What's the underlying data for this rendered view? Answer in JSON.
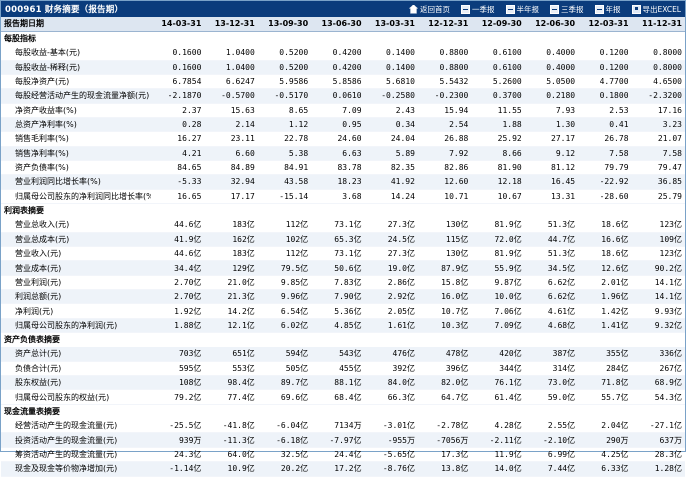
{
  "title": "000961 财务摘要（报告期）",
  "links": [
    {
      "label": "返回首页",
      "icon": "home-icon"
    },
    {
      "label": "一季报",
      "icon": "report-icon"
    },
    {
      "label": "半年报",
      "icon": "report-icon"
    },
    {
      "label": "三季报",
      "icon": "report-icon"
    },
    {
      "label": "年报",
      "icon": "report-icon"
    },
    {
      "label": "导出EXCEL",
      "icon": "export-icon"
    }
  ],
  "header": {
    "label": "报告期日期",
    "periods": [
      "14-03-31",
      "13-12-31",
      "13-09-30",
      "13-06-30",
      "13-03-31",
      "12-12-31",
      "12-09-30",
      "12-06-30",
      "12-03-31",
      "11-12-31"
    ]
  },
  "sections": [
    {
      "title": "每股指标",
      "rows": [
        {
          "label": "每股收益-基本(元)",
          "values": [
            "0.1600",
            "1.0400",
            "0.5200",
            "0.4200",
            "0.1400",
            "0.8800",
            "0.6100",
            "0.4000",
            "0.1200",
            "0.8000"
          ]
        },
        {
          "label": "每股收益-稀释(元)",
          "values": [
            "0.1600",
            "1.0400",
            "0.5200",
            "0.4200",
            "0.1400",
            "0.8800",
            "0.6100",
            "0.4000",
            "0.1200",
            "0.8000"
          ]
        },
        {
          "label": "每股净资产(元)",
          "values": [
            "6.7854",
            "6.6247",
            "5.9586",
            "5.8586",
            "5.6810",
            "5.5432",
            "5.2600",
            "5.0500",
            "4.7700",
            "4.6500"
          ]
        },
        {
          "label": "每股经营活动产生的现金流量净额(元)",
          "values": [
            "-2.1870",
            "-0.5700",
            "-0.5170",
            "0.0610",
            "-0.2580",
            "-0.2300",
            "0.3700",
            "0.2180",
            "0.1800",
            "-2.3200"
          ]
        },
        {
          "label": "净资产收益率(%)",
          "values": [
            "2.37",
            "15.63",
            "8.65",
            "7.09",
            "2.43",
            "15.94",
            "11.55",
            "7.93",
            "2.53",
            "17.16"
          ]
        },
        {
          "label": "总资产净利率(%)",
          "values": [
            "0.28",
            "2.14",
            "1.12",
            "0.95",
            "0.34",
            "2.54",
            "1.88",
            "1.30",
            "0.41",
            "3.23"
          ]
        },
        {
          "label": "销售毛利率(%)",
          "values": [
            "16.27",
            "23.11",
            "22.78",
            "24.60",
            "24.04",
            "26.88",
            "25.92",
            "27.17",
            "26.78",
            "21.07"
          ]
        },
        {
          "label": "销售净利率(%)",
          "values": [
            "4.21",
            "6.60",
            "5.38",
            "6.63",
            "5.89",
            "7.92",
            "8.66",
            "9.12",
            "7.58",
            "7.58"
          ]
        },
        {
          "label": "资产负债率(%)",
          "values": [
            "84.65",
            "84.89",
            "84.91",
            "83.78",
            "82.35",
            "82.86",
            "81.90",
            "81.12",
            "79.79",
            "79.47"
          ]
        },
        {
          "label": "营业利润同比增长率(%)",
          "values": [
            "-5.33",
            "32.94",
            "43.58",
            "18.23",
            "41.92",
            "12.60",
            "12.18",
            "16.45",
            "-22.92",
            "36.85"
          ]
        },
        {
          "label": "归属母公司股东的净利润同比增长率(%)",
          "values": [
            "16.65",
            "17.17",
            "-15.14",
            "3.68",
            "14.24",
            "10.71",
            "10.67",
            "13.31",
            "-28.60",
            "25.79"
          ]
        }
      ]
    },
    {
      "title": "利润表摘要",
      "rows": [
        {
          "label": "营业总收入(元)",
          "values": [
            "44.6亿",
            "183亿",
            "112亿",
            "73.1亿",
            "27.3亿",
            "130亿",
            "81.9亿",
            "51.3亿",
            "18.6亿",
            "123亿"
          ]
        },
        {
          "label": "营业总成本(元)",
          "values": [
            "41.9亿",
            "162亿",
            "102亿",
            "65.3亿",
            "24.5亿",
            "115亿",
            "72.0亿",
            "44.7亿",
            "16.6亿",
            "109亿"
          ]
        },
        {
          "label": "营业收入(元)",
          "values": [
            "44.6亿",
            "183亿",
            "112亿",
            "73.1亿",
            "27.3亿",
            "130亿",
            "81.9亿",
            "51.3亿",
            "18.6亿",
            "123亿"
          ]
        },
        {
          "label": "营业成本(元)",
          "values": [
            "34.4亿",
            "129亿",
            "79.5亿",
            "50.6亿",
            "19.0亿",
            "87.9亿",
            "55.9亿",
            "34.5亿",
            "12.6亿",
            "90.2亿"
          ]
        },
        {
          "label": "营业利润(元)",
          "values": [
            "2.70亿",
            "21.0亿",
            "9.85亿",
            "7.83亿",
            "2.86亿",
            "15.8亿",
            "9.87亿",
            "6.62亿",
            "2.01亿",
            "14.1亿"
          ]
        },
        {
          "label": "利润总额(元)",
          "values": [
            "2.70亿",
            "21.3亿",
            "9.96亿",
            "7.90亿",
            "2.92亿",
            "16.0亿",
            "10.0亿",
            "6.62亿",
            "1.96亿",
            "14.1亿"
          ]
        },
        {
          "label": "净利润(元)",
          "values": [
            "1.92亿",
            "14.2亿",
            "6.54亿",
            "5.36亿",
            "2.05亿",
            "10.7亿",
            "7.06亿",
            "4.61亿",
            "1.42亿",
            "9.93亿"
          ]
        },
        {
          "label": "归属母公司股东的净利润(元)",
          "values": [
            "1.88亿",
            "12.1亿",
            "6.02亿",
            "4.85亿",
            "1.61亿",
            "10.3亿",
            "7.09亿",
            "4.68亿",
            "1.41亿",
            "9.32亿"
          ]
        }
      ]
    },
    {
      "title": "资产负债表摘要",
      "rows": [
        {
          "label": "资产总计(元)",
          "values": [
            "703亿",
            "651亿",
            "594亿",
            "543亿",
            "476亿",
            "478亿",
            "420亿",
            "387亿",
            "355亿",
            "336亿"
          ]
        },
        {
          "label": "负债合计(元)",
          "values": [
            "595亿",
            "553亿",
            "505亿",
            "455亿",
            "392亿",
            "396亿",
            "344亿",
            "314亿",
            "284亿",
            "267亿"
          ]
        },
        {
          "label": "股东权益(元)",
          "values": [
            "108亿",
            "98.4亿",
            "89.7亿",
            "88.1亿",
            "84.0亿",
            "82.0亿",
            "76.1亿",
            "73.0亿",
            "71.8亿",
            "68.9亿"
          ]
        },
        {
          "label": "归属母公司股东的权益(元)",
          "values": [
            "79.2亿",
            "77.4亿",
            "69.6亿",
            "68.4亿",
            "66.3亿",
            "64.7亿",
            "61.4亿",
            "59.0亿",
            "55.7亿",
            "54.3亿"
          ]
        }
      ]
    },
    {
      "title": "现金流量表摘要",
      "rows": [
        {
          "label": "经营活动产生的现金流量(元)",
          "values": [
            "-25.5亿",
            "-41.8亿",
            "-6.04亿",
            "7134万",
            "-3.01亿",
            "-2.78亿",
            "4.28亿",
            "2.55亿",
            "2.04亿",
            "-27.1亿"
          ]
        },
        {
          "label": "投资活动产生的现金流量(元)",
          "values": [
            "939万",
            "-11.3亿",
            "-6.18亿",
            "-7.97亿",
            "-955万",
            "-7056万",
            "-2.11亿",
            "-2.10亿",
            "290万",
            "637万"
          ]
        },
        {
          "label": "筹资活动产生的现金流量(元)",
          "values": [
            "24.3亿",
            "64.0亿",
            "32.5亿",
            "24.4亿",
            "-5.65亿",
            "17.3亿",
            "11.9亿",
            "6.99亿",
            "4.25亿",
            "28.3亿"
          ]
        },
        {
          "label": "现金及现金等价物净增加(元)",
          "values": [
            "-1.14亿",
            "10.9亿",
            "20.2亿",
            "17.2亿",
            "-8.76亿",
            "13.8亿",
            "14.0亿",
            "7.44亿",
            "6.33亿",
            "1.28亿"
          ]
        }
      ]
    }
  ]
}
